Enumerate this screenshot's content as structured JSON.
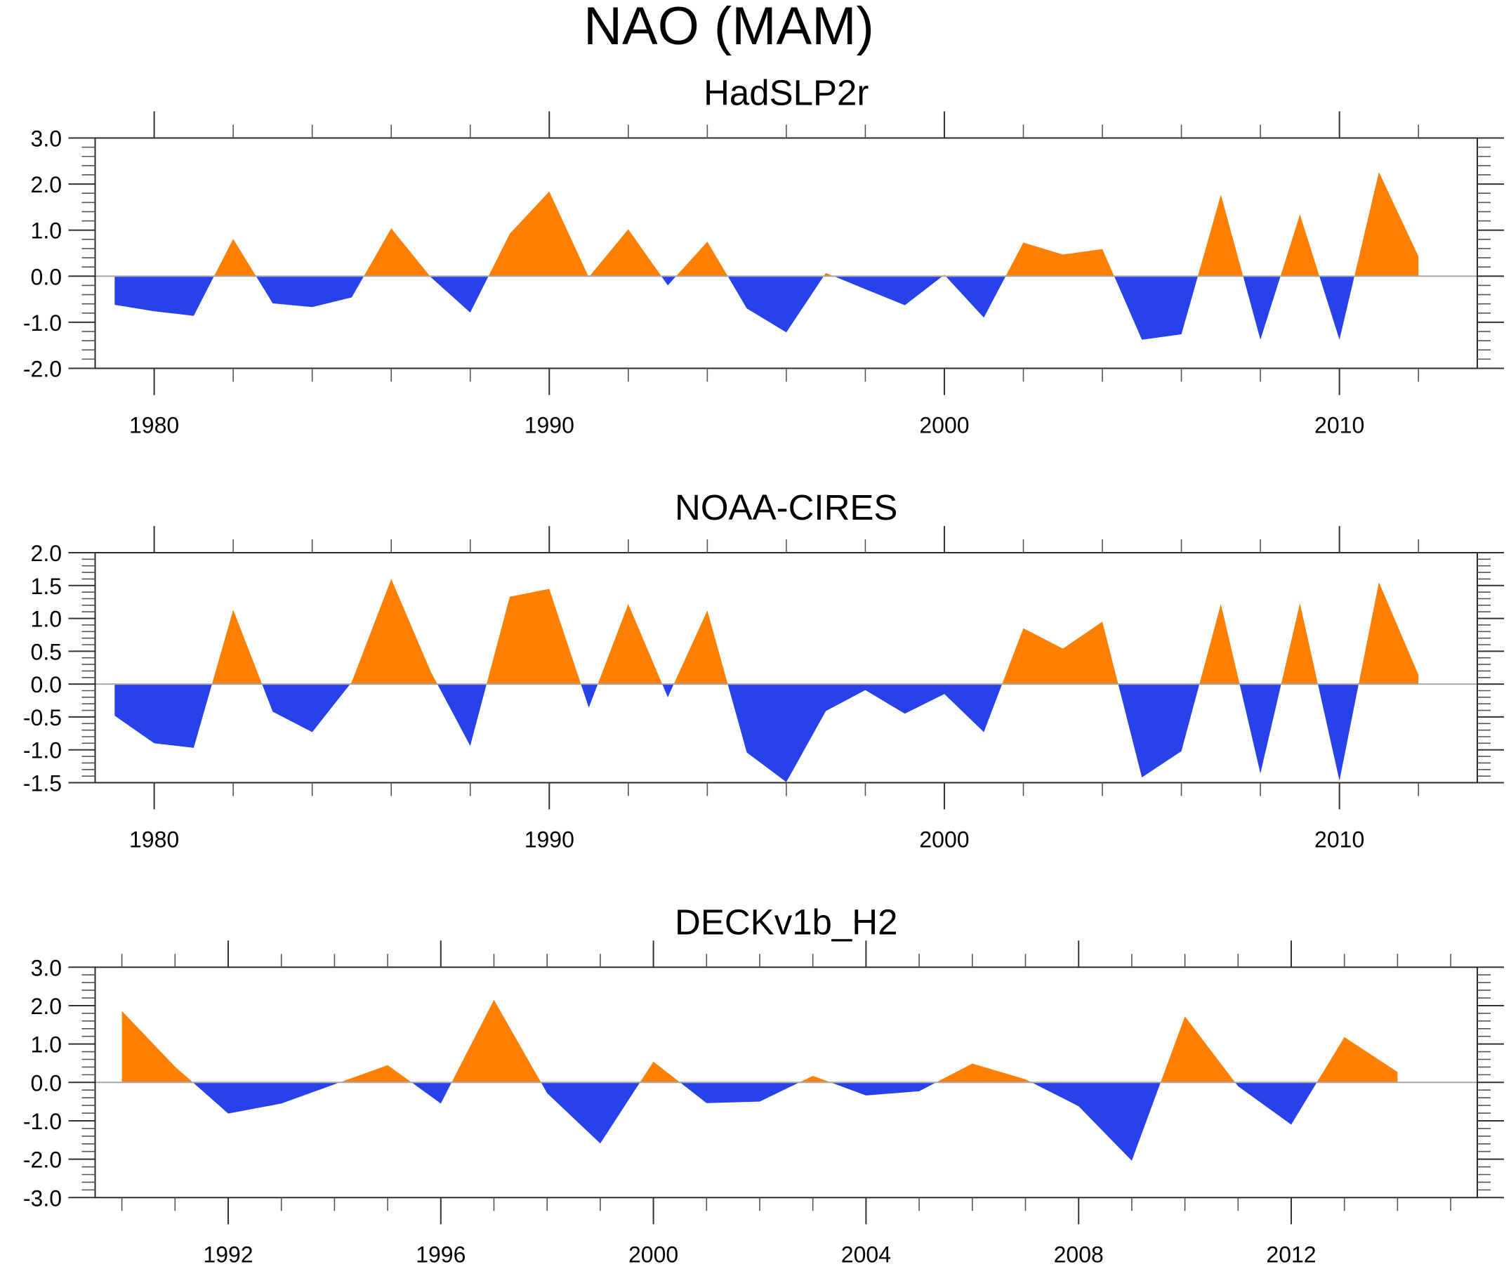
{
  "title": "NAO (MAM)",
  "colors": {
    "positive": "#FF8000",
    "negative": "#2842EA",
    "zero_line": "#A8A8A8"
  },
  "chart_data": [
    {
      "type": "area",
      "title": "HadSLP2r",
      "xlabel": "",
      "ylabel": "",
      "xlim": [
        1977.5,
        2013.8
      ],
      "ylim": [
        -2.0,
        3.0
      ],
      "x_major_ticks": [
        1980,
        1990,
        2000,
        2010
      ],
      "x_minor_step": 2,
      "y_major_ticks": [
        3.0,
        2.0,
        1.0,
        0.0,
        -1.0,
        -2.0
      ],
      "y_tick_labels": [
        "3.0",
        "2.0",
        "1.0",
        "0.0",
        "-1.0",
        "-2.0"
      ],
      "y_minor_step": 0.2,
      "grid": false,
      "x": [
        1979,
        1980,
        1981,
        1982,
        1983,
        1984,
        1985,
        1986,
        1987,
        1988,
        1989,
        1990,
        1991,
        1992,
        1993,
        1994,
        1995,
        1996,
        1997,
        1998,
        1999,
        2000,
        2001,
        2002,
        2003,
        2004,
        2005,
        2006,
        2007,
        2008,
        2009,
        2010,
        2011,
        2012
      ],
      "values": [
        -0.62,
        -0.76,
        -0.86,
        0.81,
        -0.59,
        -0.67,
        -0.46,
        1.04,
        -0.02,
        -0.79,
        0.92,
        1.84,
        -0.02,
        1.02,
        -0.2,
        0.75,
        -0.7,
        -1.22,
        0.07,
        -0.28,
        -0.63,
        0.03,
        -0.9,
        0.73,
        0.47,
        0.59,
        -1.38,
        -1.26,
        1.77,
        -1.38,
        1.34,
        -1.38,
        2.26,
        0.43
      ]
    },
    {
      "type": "area",
      "title": "NOAA-CIRES",
      "xlabel": "",
      "ylabel": "",
      "xlim": [
        1977.5,
        2013.8
      ],
      "ylim": [
        -1.5,
        2.0
      ],
      "x_major_ticks": [
        1980,
        1990,
        2000,
        2010
      ],
      "x_minor_step": 2,
      "y_major_ticks": [
        2.0,
        1.5,
        1.0,
        0.5,
        0.0,
        -0.5,
        -1.0,
        -1.5
      ],
      "y_tick_labels": [
        "2.0",
        "1.5",
        "1.0",
        "0.5",
        "0.0",
        "-0.5",
        "-1.0",
        "-1.5"
      ],
      "y_minor_step": 0.1,
      "grid": false,
      "x": [
        1979,
        1980,
        1981,
        1982,
        1983,
        1984,
        1985,
        1986,
        1987,
        1988,
        1989,
        1990,
        1991,
        1992,
        1993,
        1994,
        1995,
        1996,
        1997,
        1998,
        1999,
        2000,
        2001,
        2002,
        2003,
        2004,
        2005,
        2006,
        2007,
        2008,
        2009,
        2010,
        2011,
        2012
      ],
      "values": [
        -0.48,
        -0.9,
        -0.97,
        1.13,
        -0.42,
        -0.73,
        0.03,
        1.6,
        0.19,
        -0.94,
        1.33,
        1.45,
        -0.36,
        1.22,
        -0.2,
        1.12,
        -1.04,
        -1.49,
        -0.41,
        -0.09,
        -0.45,
        -0.15,
        -0.73,
        0.85,
        0.54,
        0.95,
        -1.42,
        -1.02,
        1.22,
        -1.36,
        1.23,
        -1.47,
        1.55,
        0.14
      ]
    },
    {
      "type": "area",
      "title": "DECKv1b_H2",
      "xlabel": "",
      "ylabel": "",
      "xlim": [
        1988.7,
        2015.5
      ],
      "ylim": [
        -3.0,
        3.0
      ],
      "x_major_ticks": [
        1992,
        1996,
        2000,
        2004,
        2008,
        2012
      ],
      "x_minor_step": 1,
      "y_major_ticks": [
        3.0,
        2.0,
        1.0,
        0.0,
        -1.0,
        -2.0,
        -3.0
      ],
      "y_tick_labels": [
        "3.0",
        "2.0",
        "1.0",
        "0.0",
        "-1.0",
        "-2.0",
        "-3.0"
      ],
      "y_minor_step": 0.2,
      "grid": false,
      "x": [
        1990,
        1991,
        1992,
        1993,
        1994,
        1995,
        1996,
        1997,
        1998,
        1999,
        2000,
        2001,
        2002,
        2003,
        2004,
        2005,
        2006,
        2007,
        2008,
        2009,
        2010,
        2011,
        2012,
        2013,
        2014
      ],
      "values": [
        1.86,
        0.41,
        -0.81,
        -0.55,
        -0.05,
        0.45,
        -0.55,
        2.15,
        -0.28,
        -1.59,
        0.54,
        -0.54,
        -0.5,
        0.17,
        -0.34,
        -0.23,
        0.49,
        0.08,
        -0.62,
        -2.04,
        1.72,
        -0.1,
        -1.1,
        1.18,
        0.27
      ]
    }
  ]
}
